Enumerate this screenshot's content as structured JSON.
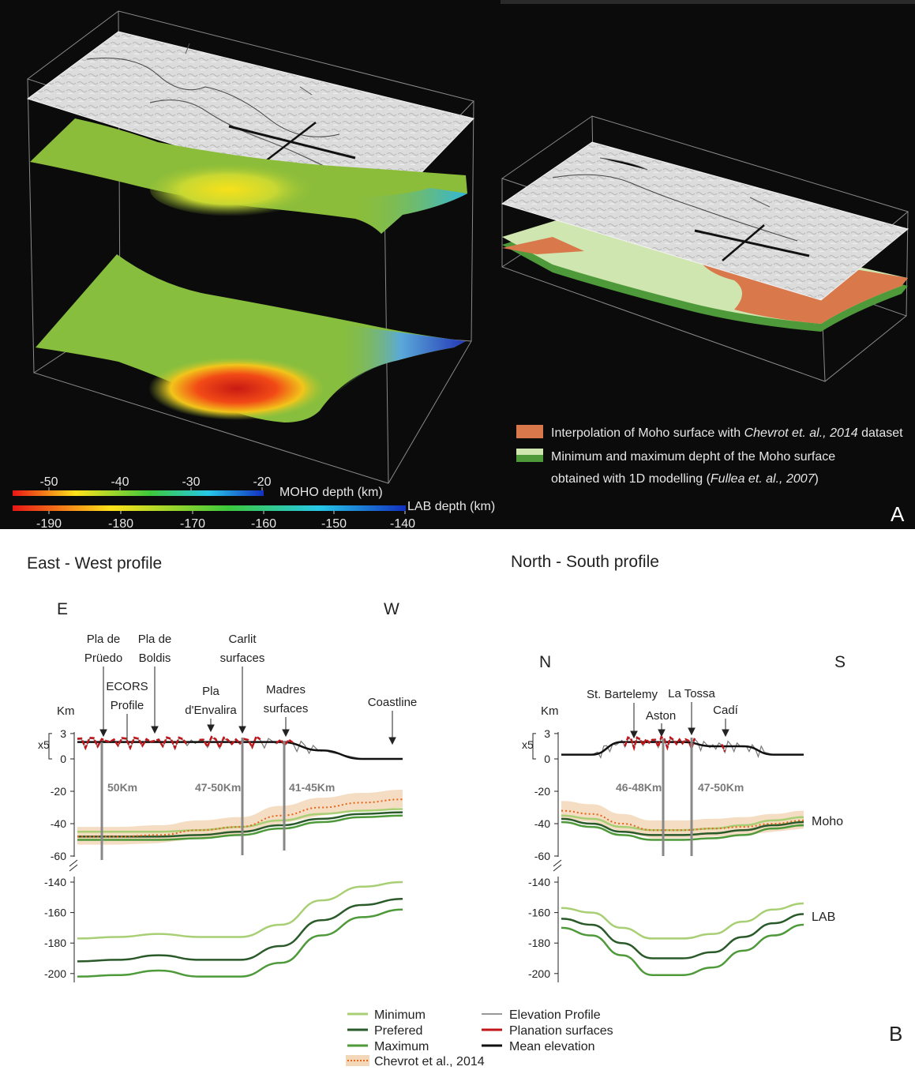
{
  "panel_a": {
    "letter": "A",
    "moho_scale": {
      "ticks": [
        "-50",
        "-40",
        "-30",
        "-20"
      ],
      "label": "MOHO depth (km)"
    },
    "lab_scale": {
      "ticks": [
        "-190",
        "-180",
        "-170",
        "-160",
        "-150",
        "-140"
      ],
      "label": "LAB depth (km)"
    },
    "legend": [
      {
        "color": "#d9784a",
        "text_a": "Interpolation of Moho surface with ",
        "text_em": "Chevrot et. al., 2014",
        "text_b": " dataset"
      },
      {
        "color": "#4f9a3c",
        "text_a": "Minimum and maximum depht of the Moho surface",
        "text_b2": "obtained with 1D modelling (",
        "text_em": "Fullea et. al., 2007",
        "text_c": ")"
      }
    ]
  },
  "panel_b": {
    "letter": "B",
    "ew": {
      "title": "East - West profile",
      "left_dir": "E",
      "right_dir": "W",
      "km": "Km",
      "exag": "x5",
      "annotations": [
        {
          "l1": "Pla de",
          "l2": "Prüedo"
        },
        {
          "l1": "ECORS",
          "l2": "Profile"
        },
        {
          "l1": "Pla de",
          "l2": "Boldis"
        },
        {
          "l1": "Pla",
          "l2": "d'Envalira"
        },
        {
          "l1": "Carlit",
          "l2": "surfaces"
        },
        {
          "l1": "Madres",
          "l2": "surfaces"
        },
        {
          "l1": "Coastline",
          "l2": ""
        }
      ],
      "depth_labels": [
        "50Km",
        "47-50Km",
        "41-45Km"
      ]
    },
    "ns": {
      "title": "North - South profile",
      "left_dir": "N",
      "right_dir": "S",
      "km": "Km",
      "exag": "x5",
      "annotations": [
        "St. Bartelemy",
        "Aston",
        "La Tossa",
        "Cadí"
      ],
      "depth_labels": [
        "46-48Km",
        "47-50Km"
      ],
      "moho_label": "Moho",
      "lab_label": "LAB"
    },
    "y_ticks_top": [
      "3",
      "0",
      "-20",
      "-40",
      "-60"
    ],
    "y_ticks_lab": [
      "-140",
      "-160",
      "-180",
      "-200"
    ],
    "legend": [
      {
        "text": "Minimum",
        "color": "#a8cf74"
      },
      {
        "text": "Prefered",
        "color": "#2a5a2a"
      },
      {
        "text": "Maximum",
        "color": "#4e9a3a"
      },
      {
        "text": "Chevrot et al., 2014",
        "color": "#e8651a"
      },
      {
        "text": "Elevation Profile",
        "color": "#777777"
      },
      {
        "text": "Planation surfaces",
        "color": "#c0161a"
      },
      {
        "text": "Mean elevation",
        "color": "#111111"
      }
    ]
  },
  "chart_data": [
    {
      "type": "line",
      "title": "East - West profile",
      "ylabel": "Km",
      "x": [
        "E",
        "",
        "",
        "",
        "",
        "",
        "",
        "",
        "W"
      ],
      "series": [
        {
          "name": "Minimum",
          "moho_values": [
            -45,
            -45,
            -45,
            -44,
            -42,
            -38,
            -34,
            -32,
            -31
          ],
          "lab_values": [
            -177,
            -176,
            -174,
            -176,
            -176,
            -168,
            -152,
            -143,
            -140
          ]
        },
        {
          "name": "Prefered",
          "moho_values": [
            -48,
            -48,
            -48,
            -47,
            -45,
            -41,
            -37,
            -34,
            -33
          ],
          "lab_values": [
            -192,
            -191,
            -188,
            -191,
            -191,
            -182,
            -165,
            -155,
            -151
          ]
        },
        {
          "name": "Maximum",
          "moho_values": [
            -50,
            -50,
            -50,
            -49,
            -47,
            -43,
            -39,
            -36,
            -35
          ],
          "lab_values": [
            -202,
            -201,
            -198,
            -202,
            -202,
            -193,
            -175,
            -163,
            -158
          ]
        },
        {
          "name": "Chevrot et al., 2014",
          "moho_values": [
            -48,
            -48,
            -47,
            -44,
            -42,
            -35,
            -30,
            -27,
            -25
          ]
        },
        {
          "name": "Mean elevation",
          "values": [
            2,
            2,
            2,
            2,
            2,
            2,
            1,
            0,
            0
          ]
        }
      ]
    },
    {
      "type": "line",
      "title": "North - South profile",
      "ylabel": "Km",
      "x": [
        "N",
        "",
        "",
        "",
        "",
        "",
        "",
        "",
        "S"
      ],
      "series": [
        {
          "name": "Minimum",
          "moho_values": [
            -35,
            -37,
            -42,
            -44,
            -44,
            -43,
            -41,
            -38,
            -36
          ],
          "lab_values": [
            -157,
            -160,
            -170,
            -177,
            -177,
            -174,
            -166,
            -158,
            -154
          ]
        },
        {
          "name": "Prefered",
          "moho_values": [
            -37,
            -40,
            -45,
            -47,
            -47,
            -46,
            -44,
            -41,
            -39
          ],
          "lab_values": [
            -164,
            -168,
            -180,
            -190,
            -190,
            -186,
            -176,
            -167,
            -161
          ]
        },
        {
          "name": "Maximum",
          "moho_values": [
            -39,
            -42,
            -47,
            -50,
            -50,
            -49,
            -47,
            -43,
            -41
          ],
          "lab_values": [
            -170,
            -175,
            -188,
            -201,
            -201,
            -196,
            -185,
            -175,
            -168
          ]
        },
        {
          "name": "Chevrot et al., 2014",
          "moho_values": [
            -32,
            -34,
            -40,
            -44,
            -44,
            -43,
            -42,
            -40,
            -38
          ]
        },
        {
          "name": "Mean elevation",
          "values": [
            0.5,
            0.5,
            2,
            2,
            2,
            1.5,
            1.5,
            0.5,
            0.5
          ]
        }
      ]
    }
  ]
}
